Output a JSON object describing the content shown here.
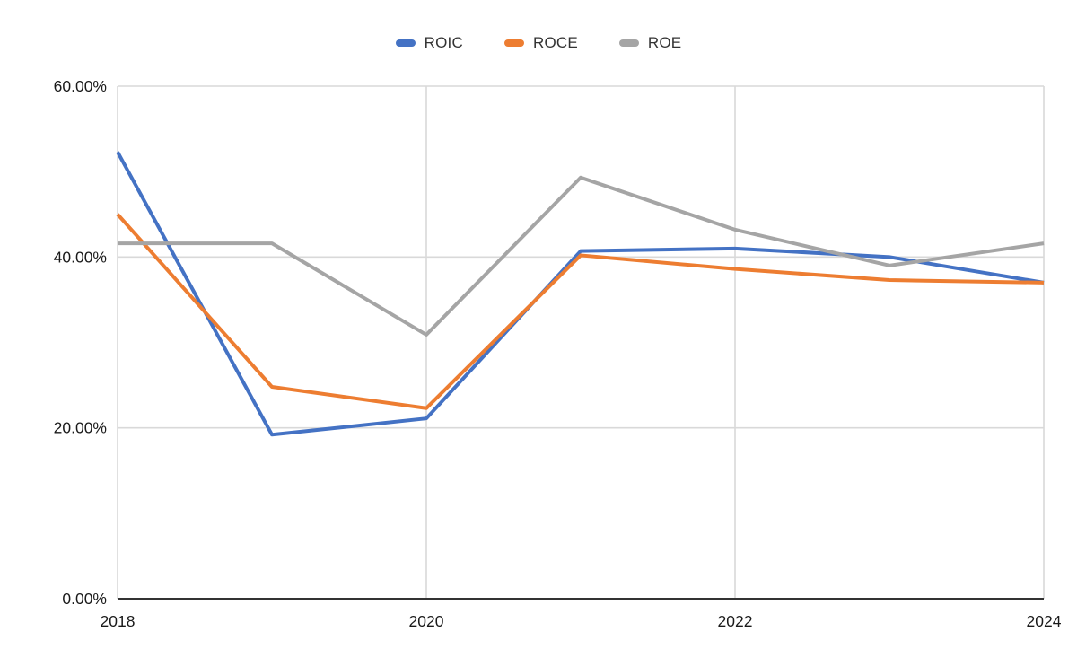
{
  "chart_data": {
    "type": "line",
    "title": "",
    "xlabel": "",
    "ylabel": "",
    "x": [
      2018,
      2019,
      2020,
      2021,
      2022,
      2023,
      2024
    ],
    "series": [
      {
        "name": "ROIC",
        "color": "#4472C4",
        "values": [
          52.3,
          19.2,
          21.1,
          40.7,
          41.0,
          40.0,
          37.0
        ]
      },
      {
        "name": "ROCE",
        "color": "#ED7D31",
        "values": [
          45.0,
          24.8,
          22.3,
          40.2,
          38.6,
          37.3,
          37.0
        ]
      },
      {
        "name": "ROE",
        "color": "#A5A5A5",
        "values": [
          41.6,
          41.6,
          30.9,
          49.3,
          43.2,
          39.0,
          41.6
        ]
      }
    ],
    "ylim": [
      0,
      60
    ],
    "xlim": [
      2018,
      2024
    ],
    "yticks": [
      {
        "value": 0,
        "label": "0.00%"
      },
      {
        "value": 20,
        "label": "20.00%"
      },
      {
        "value": 40,
        "label": "40.00%"
      },
      {
        "value": 60,
        "label": "60.00%"
      }
    ],
    "xticks": [
      {
        "value": 2018,
        "label": "2018"
      },
      {
        "value": 2020,
        "label": "2020"
      },
      {
        "value": 2022,
        "label": "2022"
      },
      {
        "value": 2024,
        "label": "2024"
      }
    ],
    "grid": true,
    "legend_position": "top-center",
    "colors": {
      "background": "#ffffff",
      "gridline": "#d9d9d9",
      "axis": "#333333",
      "tick_text": "#1a1a1a",
      "legend_text": "#333333"
    }
  }
}
